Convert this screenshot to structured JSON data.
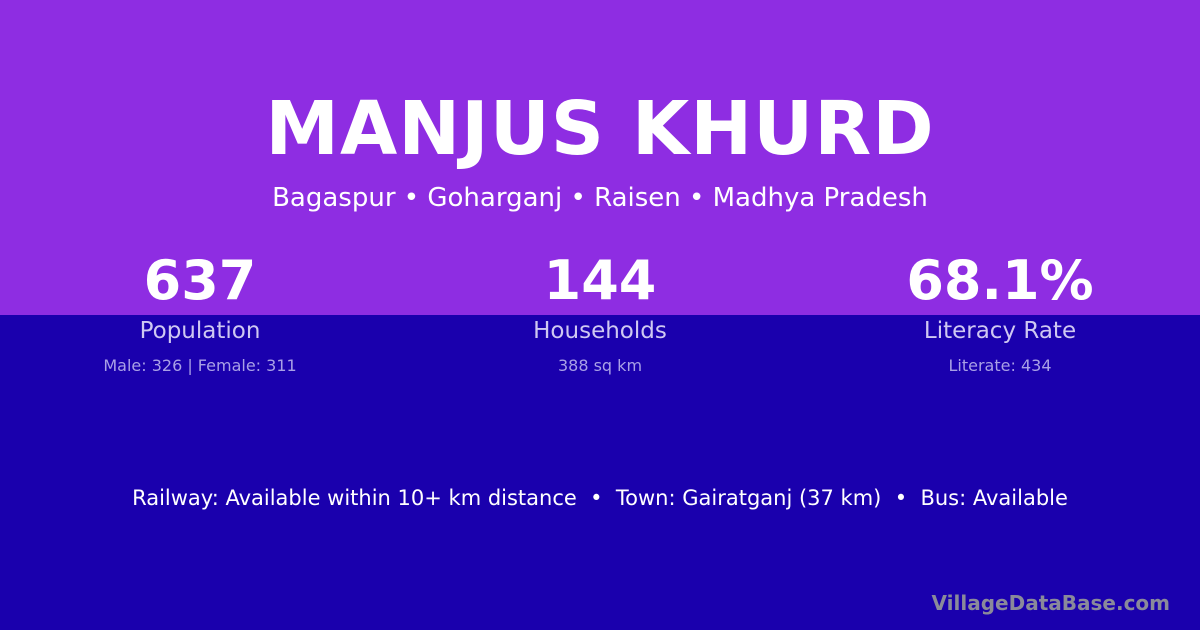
{
  "title": "MANJUS KHURD",
  "location": "Bagaspur • Goharganj • Raisen • Madhya Pradesh",
  "stats": [
    {
      "value": "637",
      "label": "Population",
      "detail": "Male: 326 | Female: 311"
    },
    {
      "value": "144",
      "label": "Households",
      "detail": "388 sq km"
    },
    {
      "value": "68.1%",
      "label": "Literacy Rate",
      "detail": "Literate: 434"
    }
  ],
  "info": "Railway: Available within 10+ km distance  •  Town: Gairatganj (37 km)  •  Bus: Available",
  "brand": "VillageDataBase.com",
  "colors": {
    "top": "#8e2de2",
    "bottom": "#1a00ad"
  }
}
